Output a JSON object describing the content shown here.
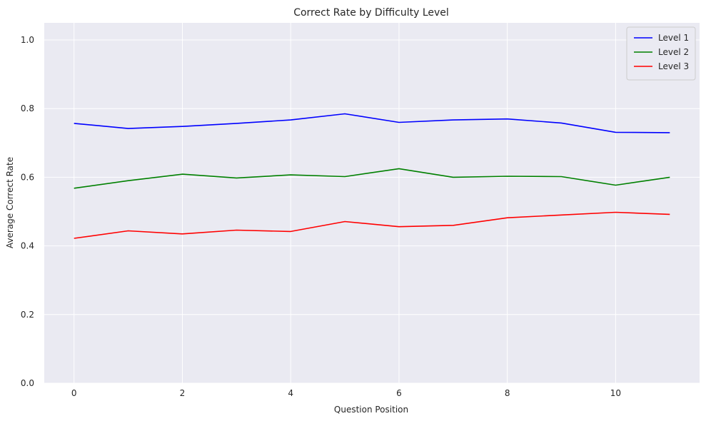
{
  "chart_data": {
    "type": "line",
    "title": "Correct Rate by Difficulty Level",
    "xlabel": "Question Position",
    "ylabel": "Average Correct Rate",
    "x": [
      0,
      1,
      2,
      3,
      4,
      5,
      6,
      7,
      8,
      9,
      10,
      11
    ],
    "xlim": [
      -0.55,
      11.55
    ],
    "ylim": [
      0.0,
      1.05
    ],
    "xticks": [
      0,
      2,
      4,
      6,
      8,
      10
    ],
    "yticks": [
      0.0,
      0.2,
      0.4,
      0.6,
      0.8,
      1.0
    ],
    "xtick_labels": [
      "0",
      "2",
      "4",
      "6",
      "8",
      "10"
    ],
    "ytick_labels": [
      "0.0",
      "0.2",
      "0.4",
      "0.6",
      "0.8",
      "1.0"
    ],
    "grid": true,
    "legend_position": "top-right",
    "series": [
      {
        "name": "Level 1",
        "color": "#0000ff",
        "values": [
          0.757,
          0.742,
          0.748,
          0.757,
          0.767,
          0.785,
          0.76,
          0.767,
          0.77,
          0.758,
          0.731,
          0.73
        ]
      },
      {
        "name": "Level 2",
        "color": "#008000",
        "values": [
          0.568,
          0.59,
          0.609,
          0.598,
          0.607,
          0.602,
          0.625,
          0.6,
          0.603,
          0.602,
          0.577,
          0.6
        ]
      },
      {
        "name": "Level 3",
        "color": "#ff0000",
        "values": [
          0.422,
          0.444,
          0.435,
          0.446,
          0.442,
          0.471,
          0.456,
          0.46,
          0.482,
          0.49,
          0.498,
          0.492
        ]
      }
    ]
  }
}
